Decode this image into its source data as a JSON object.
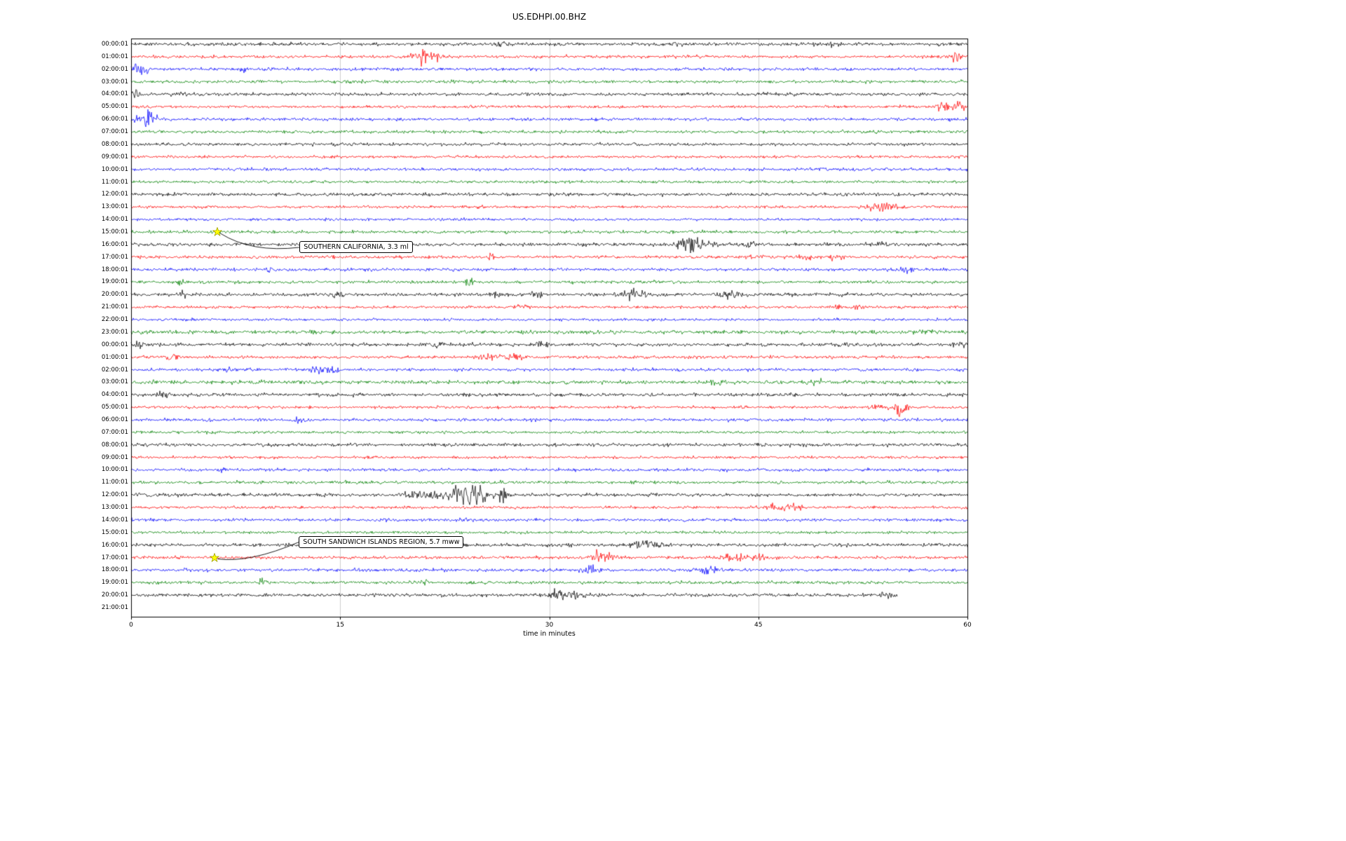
{
  "chart_data": {
    "type": "line",
    "subtype": "helicorder-seismogram",
    "title": "US.EDHPI.00.BHZ",
    "xlabel": "time in minutes",
    "ylabel": "",
    "xlim": [
      0,
      60
    ],
    "x_ticks": [
      0,
      15,
      30,
      45,
      60
    ],
    "grid": "vertical",
    "trace_color_cycle": [
      "#000000",
      "#ff0000",
      "#0000ff",
      "#008000"
    ],
    "rows": [
      {
        "label": "00:00:01",
        "color": "#000000",
        "base": 1.1,
        "events": [
          [
            26.6,
            2.5,
            0.3
          ],
          [
            39.3,
            1.5,
            0.3
          ],
          [
            50,
            1.2,
            0.5
          ]
        ]
      },
      {
        "label": "01:00:01",
        "color": "#ff0000",
        "base": 1.0,
        "events": [
          [
            21,
            5,
            0.5
          ],
          [
            21.8,
            3,
            0.3
          ],
          [
            59.2,
            5,
            0.25
          ]
        ]
      },
      {
        "label": "02:00:01",
        "color": "#0000ff",
        "base": 1.0,
        "events": [
          [
            0.6,
            4,
            0.5
          ],
          [
            8,
            2,
            0.15
          ]
        ]
      },
      {
        "label": "03:00:01",
        "color": "#008000",
        "base": 1.0,
        "events": []
      },
      {
        "label": "04:00:01",
        "color": "#000000",
        "base": 1.1,
        "events": [
          [
            0.4,
            2.5,
            0.3
          ],
          [
            3.5,
            1.5,
            0.3
          ]
        ]
      },
      {
        "label": "05:00:01",
        "color": "#ff0000",
        "base": 0.9,
        "events": [
          [
            58.3,
            2.5,
            0.5
          ],
          [
            59.5,
            2,
            0.3
          ]
        ]
      },
      {
        "label": "06:00:01",
        "color": "#0000ff",
        "base": 1.0,
        "events": [
          [
            1.2,
            6,
            0.35
          ],
          [
            0.4,
            2,
            0.2
          ]
        ]
      },
      {
        "label": "07:00:01",
        "color": "#008000",
        "base": 1.0,
        "events": []
      },
      {
        "label": "08:00:01",
        "color": "#000000",
        "base": 1.0,
        "events": []
      },
      {
        "label": "09:00:01",
        "color": "#ff0000",
        "base": 0.9,
        "events": []
      },
      {
        "label": "10:00:01",
        "color": "#0000ff",
        "base": 1.0,
        "events": []
      },
      {
        "label": "11:00:01",
        "color": "#008000",
        "base": 0.9,
        "events": []
      },
      {
        "label": "12:00:01",
        "color": "#000000",
        "base": 1.1,
        "events": []
      },
      {
        "label": "13:00:01",
        "color": "#ff0000",
        "base": 0.9,
        "events": [
          [
            54,
            3,
            0.8
          ]
        ]
      },
      {
        "label": "14:00:01",
        "color": "#0000ff",
        "base": 0.9,
        "events": []
      },
      {
        "label": "15:00:01",
        "color": "#008000",
        "base": 1.0,
        "events": []
      },
      {
        "label": "16:00:01",
        "color": "#000000",
        "base": 1.1,
        "events": [
          [
            39.8,
            4.5,
            0.5
          ],
          [
            40.8,
            2.5,
            0.8
          ],
          [
            44.5,
            1.5,
            0.4
          ],
          [
            54,
            1.8,
            0.4
          ]
        ]
      },
      {
        "label": "17:00:01",
        "color": "#ff0000",
        "base": 1.0,
        "events": [
          [
            25.8,
            1.8,
            0.2
          ],
          [
            44,
            1.8,
            0.3
          ],
          [
            48.5,
            1.8,
            0.3
          ],
          [
            50.5,
            1.5,
            0.3
          ]
        ]
      },
      {
        "label": "18:00:01",
        "color": "#0000ff",
        "base": 1.0,
        "events": [
          [
            55.6,
            2.2,
            0.3
          ],
          [
            10,
            1.5,
            0.3
          ]
        ]
      },
      {
        "label": "19:00:01",
        "color": "#008000",
        "base": 1.0,
        "events": [
          [
            3.6,
            2.2,
            0.2
          ],
          [
            24.2,
            2.2,
            0.2
          ]
        ]
      },
      {
        "label": "20:00:01",
        "color": "#000000",
        "base": 1.1,
        "events": [
          [
            3.7,
            1.8,
            0.3
          ],
          [
            14.8,
            1.8,
            0.3
          ],
          [
            29,
            1.8,
            0.3
          ],
          [
            36,
            3,
            0.6
          ],
          [
            43,
            3,
            0.6
          ],
          [
            26,
            1.5,
            0.3
          ]
        ]
      },
      {
        "label": "21:00:01",
        "color": "#ff0000",
        "base": 0.9,
        "events": [
          [
            28,
            1.8,
            0.3
          ],
          [
            51,
            1.8,
            0.3
          ],
          [
            52.3,
            1.6,
            0.3
          ]
        ]
      },
      {
        "label": "22:00:01",
        "color": "#0000ff",
        "base": 0.9,
        "events": []
      },
      {
        "label": "23:00:01",
        "color": "#008000",
        "base": 1.2,
        "events": [
          [
            57,
            1.5,
            0.4
          ]
        ]
      },
      {
        "label": "00:00:01",
        "color": "#000000",
        "base": 1.1,
        "events": [
          [
            0.5,
            2,
            0.3
          ],
          [
            22,
            1.5,
            0.3
          ],
          [
            29.3,
            1.8,
            0.3
          ],
          [
            51,
            1.5,
            0.3
          ],
          [
            59.4,
            1.8,
            0.3
          ]
        ]
      },
      {
        "label": "01:00:01",
        "color": "#ff0000",
        "base": 1.0,
        "events": [
          [
            3,
            1.8,
            0.3
          ],
          [
            26,
            2.2,
            0.7
          ],
          [
            27.6,
            1.8,
            0.4
          ]
        ]
      },
      {
        "label": "02:00:01",
        "color": "#0000ff",
        "base": 1.0,
        "events": [
          [
            7,
            1.8,
            0.25
          ],
          [
            13.3,
            2.2,
            0.3
          ],
          [
            14.5,
            2.2,
            0.3
          ]
        ]
      },
      {
        "label": "03:00:01",
        "color": "#008000",
        "base": 1.2,
        "events": [
          [
            42,
            1.8,
            0.5
          ],
          [
            49,
            1.6,
            0.5
          ]
        ]
      },
      {
        "label": "04:00:01",
        "color": "#000000",
        "base": 1.1,
        "events": [
          [
            2.3,
            2,
            0.3
          ]
        ]
      },
      {
        "label": "05:00:01",
        "color": "#ff0000",
        "base": 0.9,
        "events": [
          [
            53.5,
            2,
            0.4
          ],
          [
            55.2,
            4,
            0.4
          ]
        ]
      },
      {
        "label": "06:00:01",
        "color": "#0000ff",
        "base": 1.0,
        "events": [
          [
            12.1,
            2.5,
            0.25
          ]
        ]
      },
      {
        "label": "07:00:01",
        "color": "#008000",
        "base": 0.9,
        "events": []
      },
      {
        "label": "08:00:01",
        "color": "#000000",
        "base": 1.1,
        "events": []
      },
      {
        "label": "09:00:01",
        "color": "#ff0000",
        "base": 0.9,
        "events": []
      },
      {
        "label": "10:00:01",
        "color": "#0000ff",
        "base": 1.0,
        "events": [
          [
            6.5,
            1.5,
            0.3
          ]
        ]
      },
      {
        "label": "11:00:01",
        "color": "#008000",
        "base": 1.0,
        "events": []
      },
      {
        "label": "12:00:01",
        "color": "#000000",
        "base": 1.1,
        "events": [
          [
            21,
            3,
            0.8
          ],
          [
            23.5,
            4,
            0.8
          ],
          [
            24.3,
            3,
            0.5
          ],
          [
            25,
            5,
            0.4
          ],
          [
            26.6,
            6,
            0.25
          ]
        ]
      },
      {
        "label": "13:00:01",
        "color": "#ff0000",
        "base": 0.9,
        "events": [
          [
            46.3,
            2.8,
            0.4
          ],
          [
            47.6,
            2,
            0.4
          ]
        ]
      },
      {
        "label": "14:00:01",
        "color": "#0000ff",
        "base": 1.0,
        "events": [
          [
            24,
            1.5,
            0.4
          ]
        ]
      },
      {
        "label": "15:00:01",
        "color": "#008000",
        "base": 0.9,
        "events": []
      },
      {
        "label": "16:00:01",
        "color": "#000000",
        "base": 1.1,
        "events": [
          [
            36.5,
            2.5,
            0.5
          ],
          [
            37.6,
            2,
            0.4
          ]
        ]
      },
      {
        "label": "17:00:01",
        "color": "#ff0000",
        "base": 1.0,
        "events": [
          [
            33.6,
            3.5,
            0.3
          ],
          [
            34.3,
            2.5,
            0.3
          ],
          [
            43,
            2.2,
            0.7
          ],
          [
            45,
            2.2,
            0.5
          ]
        ]
      },
      {
        "label": "18:00:01",
        "color": "#0000ff",
        "base": 1.0,
        "events": [
          [
            33,
            2.5,
            0.5
          ],
          [
            41.5,
            2.5,
            0.5
          ]
        ]
      },
      {
        "label": "19:00:01",
        "color": "#008000",
        "base": 1.0,
        "events": [
          [
            9.5,
            3.5,
            0.2
          ],
          [
            21,
            2.5,
            0.15
          ]
        ]
      },
      {
        "label": "20:00:01",
        "color": "#000000",
        "base": 1.1,
        "end": 55,
        "events": [
          [
            30.5,
            3.5,
            0.4
          ],
          [
            31.8,
            3,
            0.4
          ],
          [
            54,
            1.5,
            0.3
          ]
        ]
      },
      {
        "label": "21:00:01",
        "color": null,
        "base": 0,
        "events": []
      }
    ],
    "annotations": [
      {
        "text": "SOUTHERN CALIFORNIA, 3.3 ml",
        "marker_row": 15,
        "marker_minute": 6.2,
        "marker_color": "#ffff00",
        "box_dx": 117,
        "box_dy": 22
      },
      {
        "text": "SOUTH SANDWICH ISLANDS REGION, 5.7 mww",
        "marker_row": 41,
        "marker_minute": 6.0,
        "marker_color": "#ffff00",
        "box_dx": 120,
        "box_dy": -22
      }
    ]
  }
}
